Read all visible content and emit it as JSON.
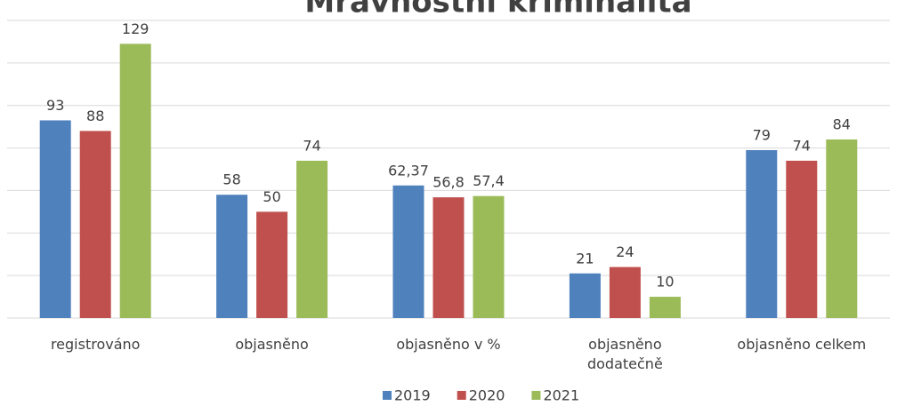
{
  "chart_data": {
    "type": "bar",
    "title": "Mravnostní kriminalita",
    "categories": [
      "registrováno",
      "objasněno",
      "objasněno v %",
      "objasněno\ndodatečně",
      "objasněno celkem"
    ],
    "series": [
      {
        "name": "2019",
        "color": "#4f81bd",
        "values": [
          93,
          58,
          62.37,
          21,
          79
        ],
        "value_labels": [
          "93",
          "58",
          "62,37",
          "21",
          "79"
        ]
      },
      {
        "name": "2020",
        "color": "#c0504d",
        "values": [
          88,
          50,
          56.8,
          24,
          74
        ],
        "value_labels": [
          "88",
          "50",
          "56,8",
          "24",
          "74"
        ]
      },
      {
        "name": "2021",
        "color": "#9bbb59",
        "values": [
          129,
          74,
          57.4,
          10,
          84
        ],
        "value_labels": [
          "129",
          "74",
          "57,4",
          "10",
          "84"
        ]
      }
    ],
    "ylim": [
      0,
      140
    ],
    "yticks": [
      0,
      20,
      40,
      60,
      80,
      100,
      120,
      140
    ],
    "grid": true,
    "legend": "bottom"
  }
}
